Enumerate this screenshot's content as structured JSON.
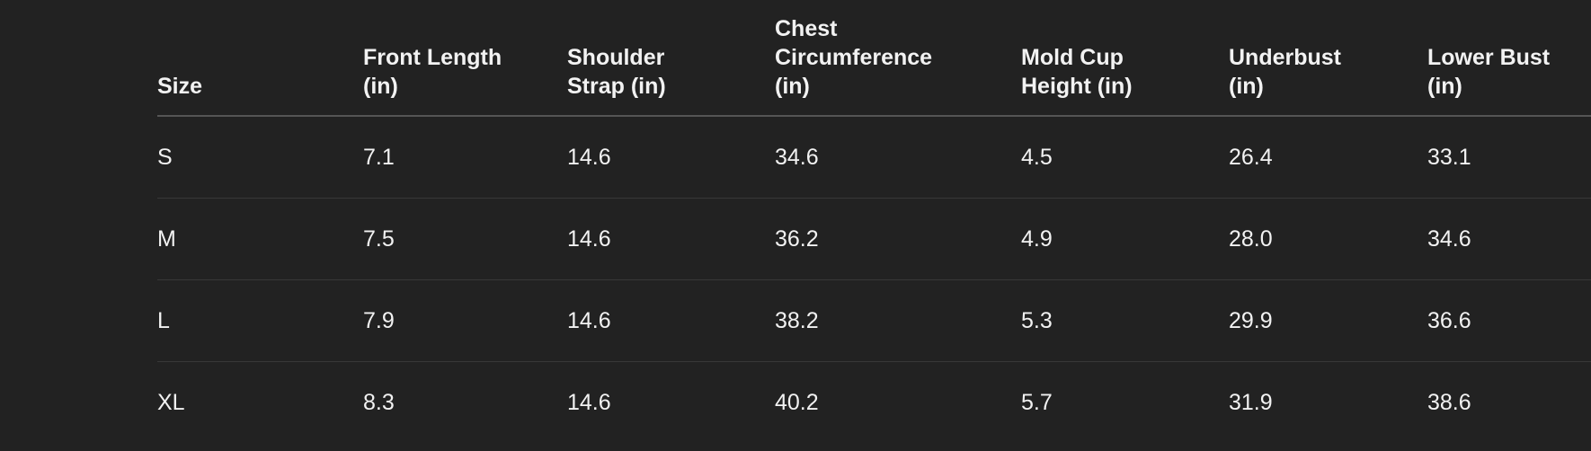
{
  "table": {
    "columns": [
      "Size",
      "Front Length (in)",
      "Shoulder Strap (in)",
      "Chest Circumference (in)",
      "Mold Cup Height (in)",
      "Underbust (in)",
      "Lower Bust (in)"
    ],
    "rows": [
      [
        "S",
        "7.1",
        "14.6",
        "34.6",
        "4.5",
        "26.4",
        "33.1"
      ],
      [
        "M",
        "7.5",
        "14.6",
        "36.2",
        "4.9",
        "28.0",
        "34.6"
      ],
      [
        "L",
        "7.9",
        "14.6",
        "38.2",
        "5.3",
        "29.9",
        "36.6"
      ],
      [
        "XL",
        "8.3",
        "14.6",
        "40.2",
        "5.7",
        "31.9",
        "38.6"
      ]
    ]
  }
}
